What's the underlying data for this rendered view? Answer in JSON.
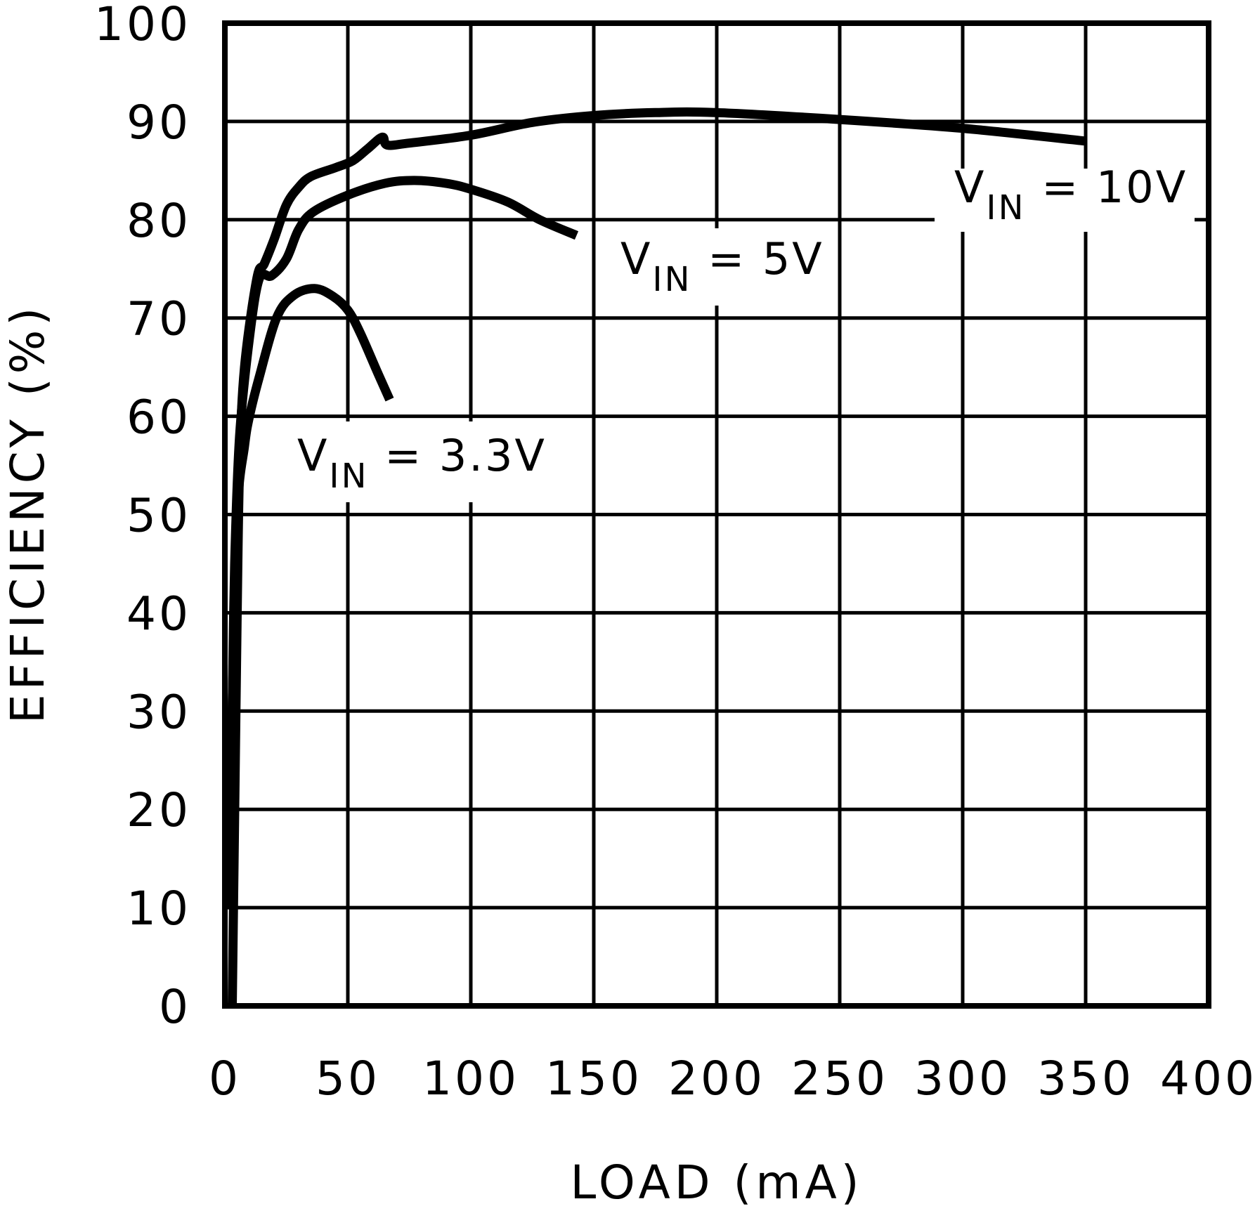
{
  "chart_data": {
    "type": "line",
    "title": "",
    "xlabel": "LOAD (mA)",
    "ylabel": "EFFICIENCY (%)",
    "xlim": [
      0,
      400
    ],
    "ylim": [
      0,
      100
    ],
    "x_ticks": [
      "0",
      "50",
      "100",
      "150",
      "200",
      "250",
      "300",
      "350",
      "400"
    ],
    "y_ticks": [
      "0",
      "10",
      "20",
      "30",
      "40",
      "50",
      "60",
      "70",
      "80",
      "90",
      "100"
    ],
    "grid": true,
    "legend_position": "inline labels",
    "series": [
      {
        "name": "VIN = 10V",
        "label_main": "V",
        "label_sub": "IN",
        "label_rest": " = 10V",
        "points": [
          [
            3,
            0
          ],
          [
            4,
            20
          ],
          [
            5,
            40
          ],
          [
            6,
            55
          ],
          [
            8,
            65
          ],
          [
            13,
            74
          ],
          [
            16,
            75.5
          ],
          [
            20,
            78
          ],
          [
            25,
            81.5
          ],
          [
            30,
            83.3
          ],
          [
            35,
            84.4
          ],
          [
            45,
            85.3
          ],
          [
            52,
            86
          ],
          [
            58,
            87.2
          ],
          [
            64,
            88.4
          ],
          [
            66,
            87.6
          ],
          [
            75,
            87.8
          ],
          [
            100,
            88.6
          ],
          [
            125,
            89.9
          ],
          [
            150,
            90.6
          ],
          [
            175,
            90.9
          ],
          [
            200,
            90.9
          ],
          [
            250,
            90.2
          ],
          [
            300,
            89.3
          ],
          [
            350,
            88
          ]
        ]
      },
      {
        "name": "VIN = 5V",
        "label_main": "V",
        "label_sub": "IN",
        "label_rest": " = 5V",
        "points": [
          [
            3,
            30
          ],
          [
            4,
            45
          ],
          [
            6,
            58
          ],
          [
            10,
            68
          ],
          [
            14,
            74
          ],
          [
            19,
            74.3
          ],
          [
            25,
            76
          ],
          [
            30,
            79
          ],
          [
            36,
            80.8
          ],
          [
            50,
            82.5
          ],
          [
            65,
            83.7
          ],
          [
            77,
            84
          ],
          [
            90,
            83.7
          ],
          [
            100,
            83.1
          ],
          [
            115,
            81.8
          ],
          [
            128,
            80
          ],
          [
            143,
            78.4
          ]
        ]
      },
      {
        "name": "VIN = 3.3V",
        "label_main": "V",
        "label_sub": "IN",
        "label_rest": " = 3.3V",
        "points": [
          [
            2,
            10
          ],
          [
            3,
            30
          ],
          [
            5,
            50
          ],
          [
            8,
            57
          ],
          [
            10,
            60
          ],
          [
            14,
            64
          ],
          [
            21,
            70
          ],
          [
            28,
            72.3
          ],
          [
            36.5,
            73
          ],
          [
            44,
            72.2
          ],
          [
            50,
            70.8
          ],
          [
            55,
            68.5
          ],
          [
            62,
            64.5
          ],
          [
            67,
            61.7
          ]
        ]
      }
    ]
  }
}
